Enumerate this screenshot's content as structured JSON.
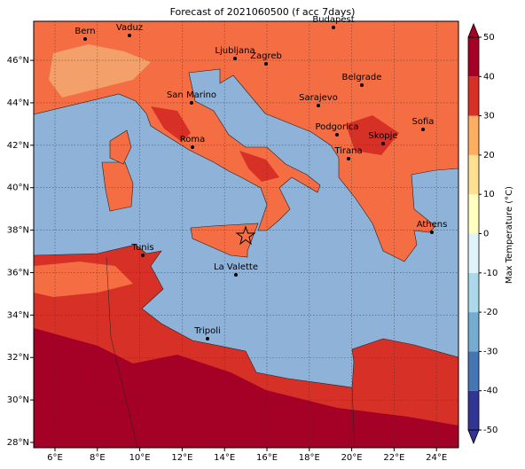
{
  "title": "Forecast of 2021060500 (f acc 7days)",
  "cities": [
    {
      "label": "Bern"
    },
    {
      "label": "Vaduz"
    },
    {
      "label": "Budapest"
    },
    {
      "label": "Ljubljana"
    },
    {
      "label": "Zagreb"
    },
    {
      "label": "Belgrade"
    },
    {
      "label": "San Marino"
    },
    {
      "label": "Sarajevo"
    },
    {
      "label": "Sofia"
    },
    {
      "label": "Roma"
    },
    {
      "label": "Podgorica"
    },
    {
      "label": "Skopje"
    },
    {
      "label": "Tirana"
    },
    {
      "label": "Athens"
    },
    {
      "label": "Tunis"
    },
    {
      "label": "La Valette"
    },
    {
      "label": "Tripoli"
    }
  ],
  "lon_ticks": [
    {
      "value": 6,
      "label": "6°E"
    },
    {
      "value": 8,
      "label": "8°E"
    },
    {
      "value": 10,
      "label": "10°E"
    },
    {
      "value": 12,
      "label": "12°E"
    },
    {
      "value": 14,
      "label": "14°E"
    },
    {
      "value": 16,
      "label": "16°E"
    },
    {
      "value": 18,
      "label": "18°E"
    },
    {
      "value": 20,
      "label": "20°E"
    },
    {
      "value": 22,
      "label": "22°E"
    },
    {
      "value": 24,
      "label": "24°E"
    }
  ],
  "lat_ticks": [
    {
      "value": 28,
      "label": "28°N"
    },
    {
      "value": 30,
      "label": "30°N"
    },
    {
      "value": 32,
      "label": "32°N"
    },
    {
      "value": 34,
      "label": "34°N"
    },
    {
      "value": 36,
      "label": "36°N"
    },
    {
      "value": 38,
      "label": "38°N"
    },
    {
      "value": 40,
      "label": "40°N"
    },
    {
      "value": 42,
      "label": "42°N"
    },
    {
      "value": 44,
      "label": "44°N"
    },
    {
      "value": 46,
      "label": "46°N"
    }
  ],
  "colorbar": {
    "label": "Max Temperature (°C)",
    "lim": [
      -50,
      50
    ],
    "ticks": [
      -50,
      -40,
      -30,
      -20,
      -10,
      0,
      10,
      20,
      30,
      40,
      50
    ],
    "colors": [
      "#313695",
      "#4575b4",
      "#74add1",
      "#abd9e9",
      "#e0f3f8",
      "#ffffbf",
      "#fee090",
      "#fdae61",
      "#d73027",
      "#a50026"
    ]
  }
}
